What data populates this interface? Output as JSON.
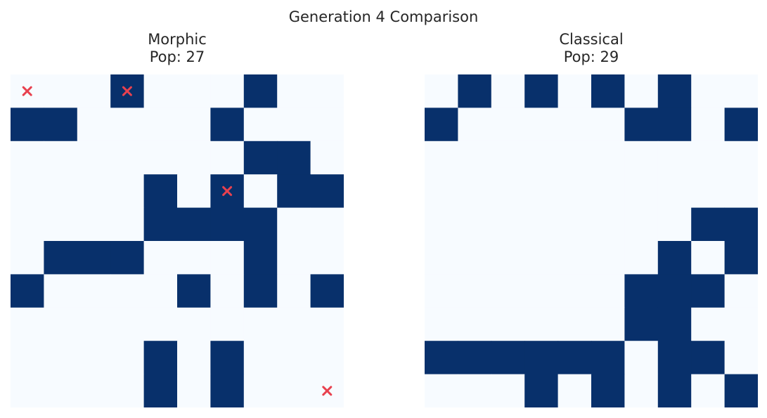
{
  "chart_data": {
    "type": "heatmap",
    "title": "Generation 4 Comparison",
    "colors": {
      "alive": "#08306b",
      "dead": "#f7fbff",
      "marker": "#e8414f"
    },
    "grid_size": 10,
    "panels": [
      {
        "title": "Morphic",
        "subtitle": "Pop: 27",
        "cells": [
          [
            0,
            0,
            0,
            1,
            0,
            0,
            0,
            1,
            0,
            0
          ],
          [
            1,
            1,
            0,
            0,
            0,
            0,
            1,
            0,
            0,
            0
          ],
          [
            0,
            0,
            0,
            0,
            0,
            0,
            0,
            1,
            1,
            0
          ],
          [
            0,
            0,
            0,
            0,
            1,
            0,
            1,
            0,
            1,
            1
          ],
          [
            0,
            0,
            0,
            0,
            1,
            1,
            1,
            1,
            0,
            0
          ],
          [
            0,
            1,
            1,
            1,
            0,
            0,
            0,
            1,
            0,
            0
          ],
          [
            1,
            0,
            0,
            0,
            0,
            1,
            0,
            1,
            0,
            1
          ],
          [
            0,
            0,
            0,
            0,
            0,
            0,
            0,
            0,
            0,
            0
          ],
          [
            0,
            0,
            0,
            0,
            1,
            0,
            1,
            0,
            0,
            0
          ],
          [
            0,
            0,
            0,
            0,
            1,
            0,
            1,
            0,
            0,
            0
          ]
        ],
        "markers": [
          {
            "row": 0,
            "col": 0
          },
          {
            "row": 0,
            "col": 3
          },
          {
            "row": 3,
            "col": 6
          },
          {
            "row": 9,
            "col": 9
          }
        ]
      },
      {
        "title": "Classical",
        "subtitle": "Pop: 29",
        "cells": [
          [
            0,
            1,
            0,
            1,
            0,
            1,
            0,
            1,
            0,
            0
          ],
          [
            1,
            0,
            0,
            0,
            0,
            0,
            1,
            1,
            0,
            1
          ],
          [
            0,
            0,
            0,
            0,
            0,
            0,
            0,
            0,
            0,
            0
          ],
          [
            0,
            0,
            0,
            0,
            0,
            0,
            0,
            0,
            0,
            0
          ],
          [
            0,
            0,
            0,
            0,
            0,
            0,
            0,
            0,
            1,
            1
          ],
          [
            0,
            0,
            0,
            0,
            0,
            0,
            0,
            1,
            0,
            1
          ],
          [
            0,
            0,
            0,
            0,
            0,
            0,
            1,
            1,
            1,
            0
          ],
          [
            0,
            0,
            0,
            0,
            0,
            0,
            1,
            1,
            0,
            0
          ],
          [
            1,
            1,
            1,
            1,
            1,
            1,
            0,
            1,
            1,
            0
          ],
          [
            0,
            0,
            0,
            1,
            0,
            1,
            0,
            1,
            0,
            1
          ]
        ],
        "markers": []
      }
    ]
  }
}
